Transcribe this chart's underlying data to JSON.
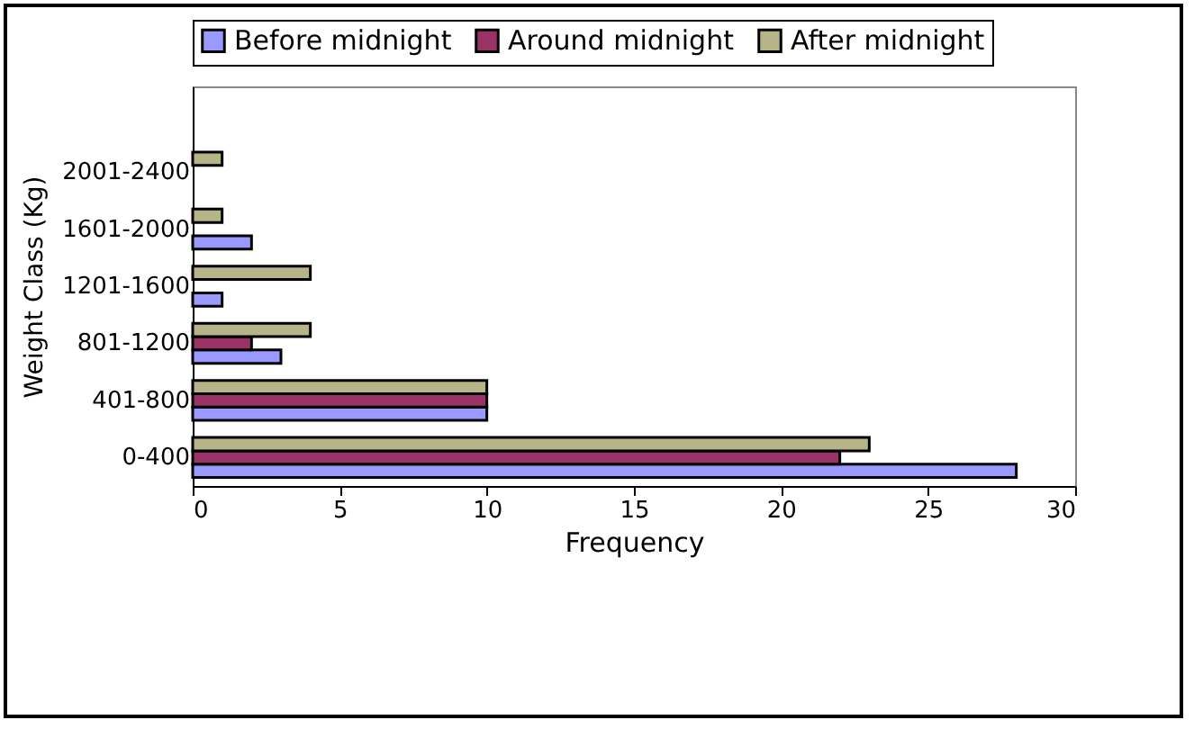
{
  "chart_data": {
    "type": "bar",
    "orientation": "horizontal",
    "xlabel": "Frequency",
    "ylabel": "Weight Class (Kg)",
    "categories": [
      null,
      "2001-2400",
      "1601-2000",
      "1201-1600",
      "801-1200",
      "401-800",
      "0-400"
    ],
    "series": [
      {
        "name": "Before midnight",
        "color": "#9999ff",
        "values": [
          null,
          null,
          2,
          1,
          3,
          10,
          28
        ]
      },
      {
        "name": "Around midnight",
        "color": "#993366",
        "values": [
          null,
          null,
          null,
          null,
          2,
          10,
          22
        ]
      },
      {
        "name": "After midnight",
        "color": "#b8b48a",
        "values": [
          null,
          1,
          1,
          4,
          4,
          10,
          23
        ]
      }
    ],
    "xlim": [
      0,
      30
    ],
    "xticks": [
      0,
      5,
      10,
      15,
      20,
      25,
      30
    ],
    "grid": false,
    "legend": "top"
  }
}
